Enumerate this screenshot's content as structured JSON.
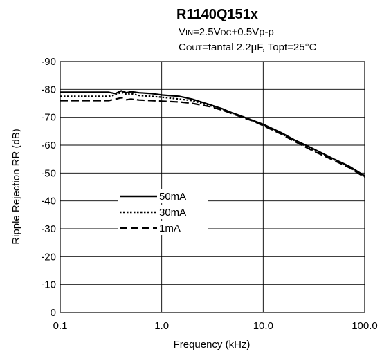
{
  "chart_data": {
    "type": "line",
    "title": "R1140Q151x",
    "conditions": [
      {
        "parts": [
          {
            "t": "V",
            "small": false
          },
          {
            "t": "IN",
            "small": true
          },
          {
            "t": "=2.5V",
            "small": false
          },
          {
            "t": "DC",
            "small": true
          },
          {
            "t": "+0.5Vp-p",
            "small": false
          }
        ]
      },
      {
        "parts": [
          {
            "t": "C",
            "small": false
          },
          {
            "t": "OUT",
            "small": true
          },
          {
            "t": "=tantal 2.2",
            "small": false
          },
          {
            "t": "μ",
            "small": false
          },
          {
            "t": "F, Topt=25°C",
            "small": false
          }
        ]
      }
    ],
    "xlabel": "Frequency (kHz)",
    "ylabel": "Ripple Rejection RR (dB)",
    "xscale": "log",
    "xlim": [
      0.1,
      100
    ],
    "ylim": [
      0,
      -90
    ],
    "x_ticks": [
      {
        "value": 0.1,
        "label": "0.1"
      },
      {
        "value": 1,
        "label": "1.0"
      },
      {
        "value": 10,
        "label": "10.0"
      },
      {
        "value": 100,
        "label": "100.0"
      }
    ],
    "y_ticks": [
      {
        "value": 0,
        "label": "0"
      },
      {
        "value": -10,
        "label": "-10"
      },
      {
        "value": -20,
        "label": "-20"
      },
      {
        "value": -30,
        "label": "-30"
      },
      {
        "value": -40,
        "label": "-40"
      },
      {
        "value": -50,
        "label": "-50"
      },
      {
        "value": -60,
        "label": "-60"
      },
      {
        "value": -70,
        "label": "-70"
      },
      {
        "value": -80,
        "label": "-80"
      },
      {
        "value": -90,
        "label": "-90"
      }
    ],
    "grid": true,
    "legend_position": "center-left",
    "series": [
      {
        "name": "50mA",
        "dash": "solid",
        "x": [
          0.1,
          0.2,
          0.3,
          0.35,
          0.4,
          0.45,
          0.5,
          0.6,
          0.8,
          1.0,
          1.5,
          2.0,
          3.0,
          4.0,
          5.0,
          6.0,
          8.0,
          10,
          15,
          20,
          30,
          50,
          70,
          100
        ],
        "y": [
          -79,
          -79,
          -79,
          -78.5,
          -79.5,
          -78.8,
          -79.2,
          -78.8,
          -78.5,
          -78,
          -77.5,
          -76.5,
          -74.5,
          -73,
          -71.5,
          -70.5,
          -68.8,
          -67.5,
          -64.5,
          -62,
          -59,
          -55,
          -52.5,
          -49
        ]
      },
      {
        "name": "30mA",
        "dash": "dotted",
        "x": [
          0.1,
          0.2,
          0.3,
          0.35,
          0.4,
          0.45,
          0.5,
          0.6,
          0.8,
          1.0,
          1.5,
          2.0,
          3.0,
          4.0,
          5.0,
          6.0,
          8.0,
          10,
          15,
          20,
          30,
          50,
          70,
          100
        ],
        "y": [
          -77.5,
          -77.5,
          -77.5,
          -78,
          -79,
          -78.2,
          -78.5,
          -77.8,
          -77.5,
          -77.2,
          -76.5,
          -76,
          -74.2,
          -72.8,
          -71.5,
          -70.5,
          -68.8,
          -67.2,
          -64.2,
          -61.8,
          -58.5,
          -54.8,
          -52.2,
          -48.8
        ]
      },
      {
        "name": "1mA",
        "dash": "dashed",
        "x": [
          0.1,
          0.2,
          0.3,
          0.35,
          0.4,
          0.45,
          0.5,
          0.6,
          0.8,
          1.0,
          1.5,
          2.0,
          3.0,
          4.0,
          5.0,
          6.0,
          8.0,
          10,
          15,
          20,
          30,
          50,
          70,
          100
        ],
        "y": [
          -76,
          -76,
          -76,
          -76.5,
          -77,
          -76.3,
          -76.5,
          -76.2,
          -76,
          -75.8,
          -75.5,
          -75,
          -73.8,
          -72.5,
          -71.2,
          -70.2,
          -68.6,
          -67,
          -64,
          -61.5,
          -58.2,
          -54.5,
          -52,
          -48.5
        ]
      }
    ]
  }
}
